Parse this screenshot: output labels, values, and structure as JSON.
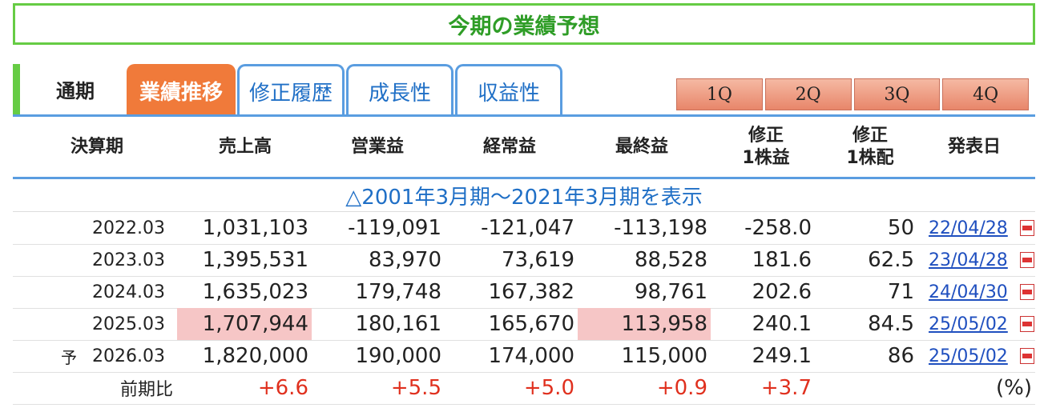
{
  "title": "今期の業績予想",
  "tabs": {
    "static": "通期",
    "items": [
      {
        "label": "業績推移",
        "active": true
      },
      {
        "label": "修正履歴",
        "active": false
      },
      {
        "label": "成長性",
        "active": false
      },
      {
        "label": "収益性",
        "active": false
      }
    ],
    "quarters": [
      "1Q",
      "2Q",
      "3Q",
      "4Q"
    ]
  },
  "columns": [
    "決算期",
    "売上高",
    "営業益",
    "経常益",
    "最終益",
    "修正\n1株益",
    "修正\n1株配",
    "発表日"
  ],
  "expand_link": "△2001年3月期〜2021年3月期を表示",
  "rows": [
    {
      "forecast_mark": "",
      "period": "2022.03",
      "sales": "1,031,103",
      "op": "-119,091",
      "ord": "-121,047",
      "net": "-113,198",
      "eps": "-258.0",
      "div": "50",
      "date": "22/04/28"
    },
    {
      "forecast_mark": "",
      "period": "2023.03",
      "sales": "1,395,531",
      "op": "83,970",
      "ord": "73,619",
      "net": "88,528",
      "eps": "181.6",
      "div": "62.5",
      "date": "23/04/28"
    },
    {
      "forecast_mark": "",
      "period": "2024.03",
      "sales": "1,635,023",
      "op": "179,748",
      "ord": "167,382",
      "net": "98,761",
      "eps": "202.6",
      "div": "71",
      "date": "24/04/30"
    },
    {
      "forecast_mark": "",
      "period": "2025.03",
      "sales": "1,707,944",
      "op": "180,161",
      "ord": "165,670",
      "net": "113,958",
      "eps": "240.1",
      "div": "84.5",
      "date": "25/05/02"
    },
    {
      "forecast_mark": "予",
      "period": "2026.03",
      "sales": "1,820,000",
      "op": "190,000",
      "ord": "174,000",
      "net": "115,000",
      "eps": "249.1",
      "div": "86",
      "date": "25/05/02"
    }
  ],
  "yoy": {
    "label": "前期比",
    "sales": "+6.6",
    "op": "+5.5",
    "ord": "+5.0",
    "net": "+0.9",
    "eps": "+3.7",
    "unit": "(%)"
  },
  "colors": {
    "accent_green": "#66cc44",
    "tab_active": "#f07a3a",
    "link_blue": "#1f6fc6",
    "highlight": "#f6c6c6",
    "positive_red": "#e0301e"
  }
}
